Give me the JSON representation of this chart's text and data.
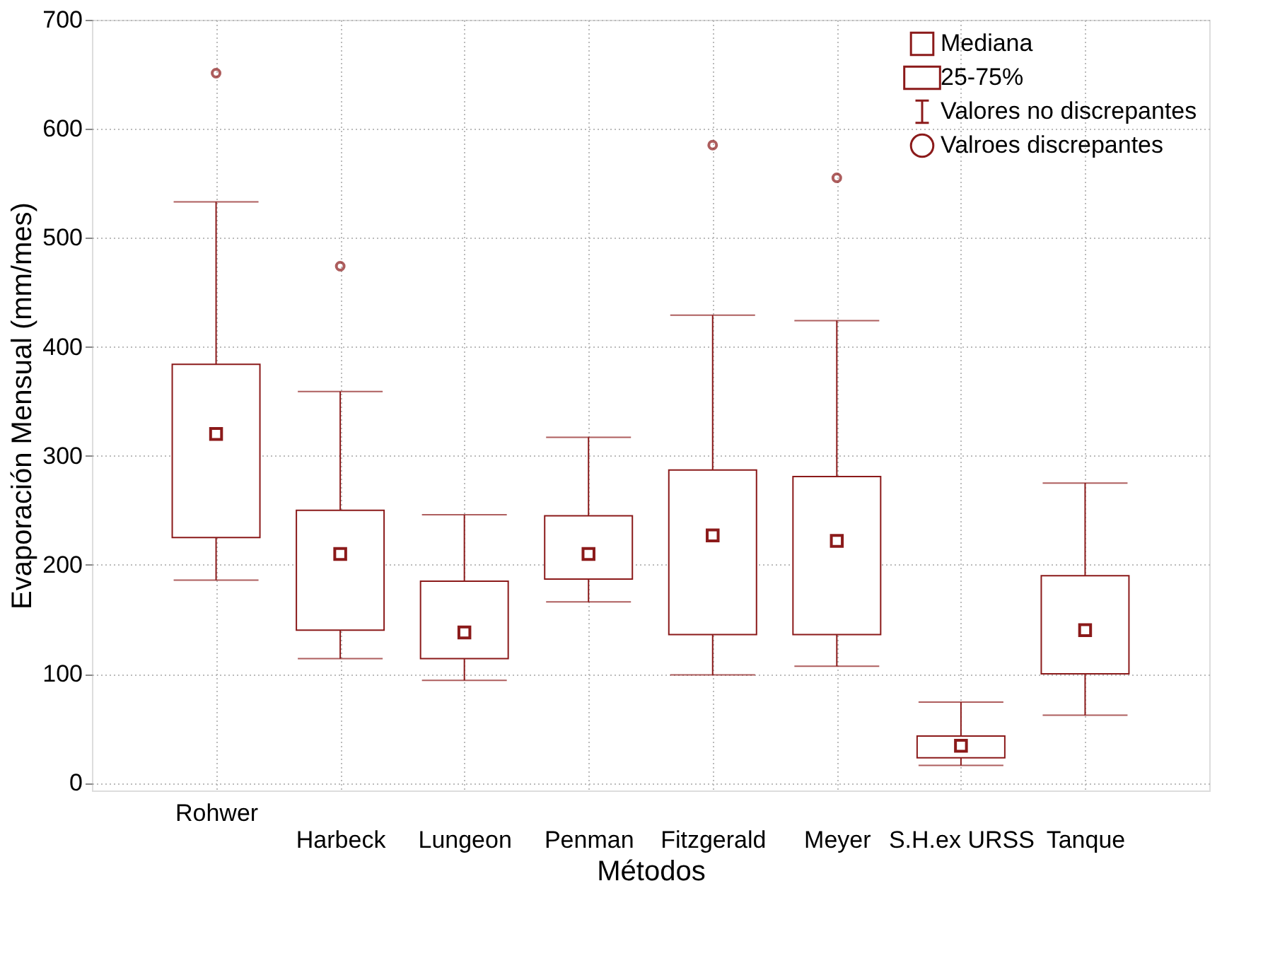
{
  "chart_data": {
    "type": "box",
    "xlabel": "Métodos",
    "ylabel": "Evaporación Mensual (mm/mes)",
    "categories": [
      "Rohwer",
      "Harbeck",
      "Lungeon",
      "Penman",
      "Fitzgerald",
      "Meyer",
      "S.H.ex URSS",
      "Tanque"
    ],
    "series": [
      {
        "color": "#8b1a1a",
        "boxes": [
          {
            "low": 186,
            "q1": 225,
            "median": 320,
            "q3": 384,
            "high": 533,
            "outliers": [
              651
            ]
          },
          {
            "low": 114,
            "q1": 140,
            "median": 210,
            "q3": 250,
            "high": 359,
            "outliers": [
              474
            ]
          },
          {
            "low": 94,
            "q1": 114,
            "median": 138,
            "q3": 185,
            "high": 246
          },
          {
            "low": 166,
            "q1": 187,
            "median": 210,
            "q3": 245,
            "high": 317
          },
          {
            "low": 99,
            "q1": 136,
            "median": 227,
            "q3": 287,
            "high": 429,
            "outliers": [
              585
            ]
          },
          {
            "low": 107,
            "q1": 136,
            "median": 222,
            "q3": 281,
            "high": 424,
            "outliers": [
              555
            ]
          },
          {
            "low": 16,
            "q1": 23,
            "median": 34,
            "q3": 43,
            "high": 74
          },
          {
            "low": 62,
            "q1": 100,
            "median": 140,
            "q3": 190,
            "high": 275
          }
        ]
      }
    ],
    "ylim": [
      -7,
      700
    ],
    "yticks": [
      0,
      100,
      200,
      300,
      400,
      500,
      600,
      700
    ],
    "grid": true,
    "annotations": [
      "Mediana",
      "25-75%",
      "Valores no discrepantes",
      "Valroes discrepantes"
    ]
  }
}
